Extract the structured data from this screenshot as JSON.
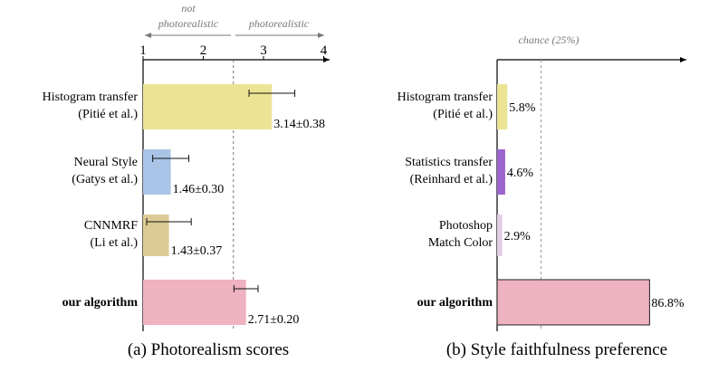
{
  "chart_data": [
    {
      "type": "bar",
      "orientation": "horizontal",
      "caption": "(a) Photorealism scores",
      "region_labels": {
        "left": "not photorealistic",
        "right": "photorealistic"
      },
      "threshold": 2.5,
      "xlim": [
        1,
        4
      ],
      "xticks": [
        "1",
        "2",
        "3",
        "4"
      ],
      "grid": false,
      "categories": [
        {
          "line1": "Histogram transfer",
          "line2": "(Pitié et al.)",
          "bold": false
        },
        {
          "line1": "Neural Style",
          "line2": "(Gatys et al.)",
          "bold": false
        },
        {
          "line1": "CNNMRF",
          "line2": "(Li et al.)",
          "bold": false
        },
        {
          "line1": "our algorithm",
          "line2": "",
          "bold": true
        }
      ],
      "values": [
        3.14,
        1.46,
        1.43,
        2.71
      ],
      "errors": [
        0.38,
        0.3,
        0.37,
        0.2
      ],
      "value_labels": [
        "3.14±0.38",
        "1.46±0.30",
        "1.43±0.37",
        "2.71±0.20"
      ],
      "colors": [
        "#ece494",
        "#a9c4e6",
        "#dccb94",
        "#eeb2c1"
      ]
    },
    {
      "type": "bar",
      "orientation": "horizontal",
      "caption": "(b) Style faithfulness preference",
      "reference_label": "chance (25%)",
      "reference_value": 25,
      "xlim": [
        0,
        100
      ],
      "grid": false,
      "categories": [
        {
          "line1": "Histogram transfer",
          "line2": "(Pitié et al.)",
          "bold": false
        },
        {
          "line1": "Statistics transfer",
          "line2": "(Reinhard et al.)",
          "bold": false
        },
        {
          "line1": "Photoshop",
          "line2": "Match Color",
          "bold": false
        },
        {
          "line1": "our algorithm",
          "line2": "",
          "bold": true
        }
      ],
      "values": [
        5.8,
        4.6,
        2.9,
        86.8
      ],
      "value_labels": [
        "5.8%",
        "4.6%",
        "2.9%",
        "86.8%"
      ],
      "colors": [
        "#ece494",
        "#9b64cf",
        "#e4cce6",
        "#eeb2c1"
      ]
    }
  ]
}
